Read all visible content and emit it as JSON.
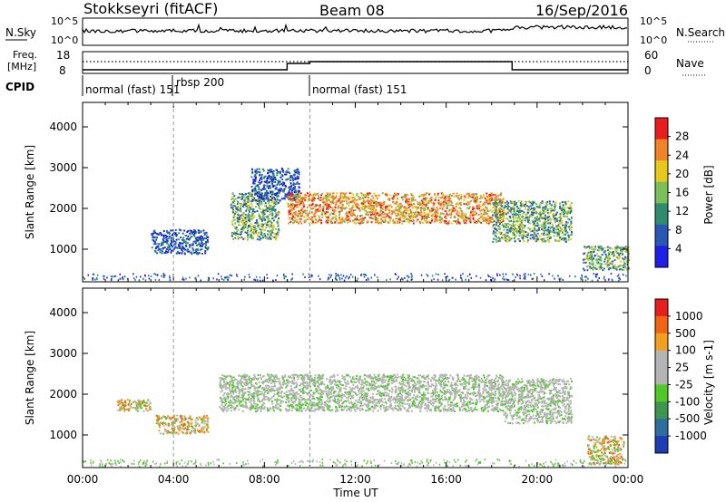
{
  "header": {
    "station": "Stokkseyri (fitACF)",
    "beam": "Beam 08",
    "date": "16/Sep/2016"
  },
  "noise_panel": {
    "left_label": "N.Sky",
    "right_label": "N.Search",
    "left_ticks": [
      "10^5",
      "10^0"
    ],
    "right_ticks": [
      "10^5",
      "10^0"
    ],
    "right_line_style": "dotted"
  },
  "freq_panel": {
    "left_label_line1": "Freq.",
    "left_label_line2": "[MHz]",
    "right_label": "Nave",
    "left_ticks": [
      "18",
      "8"
    ],
    "right_ticks": [
      "60",
      "0"
    ],
    "right_line_style": "dotted"
  },
  "cpid_panel": {
    "label": "CPID",
    "segments": [
      {
        "text": "normal (fast) 151",
        "start_hour": 0
      },
      {
        "text": "rbsp 200",
        "start_hour": 4.1
      },
      {
        "text": "normal (fast) 151",
        "start_hour": 10.0
      }
    ]
  },
  "chart_data": [
    {
      "type": "heatmap",
      "name": "power",
      "xlabel": "",
      "ylabel": "Slant Range [km]",
      "xlim": [
        0,
        24
      ],
      "ylim": [
        200,
        4600
      ],
      "y_ticks": [
        "1000",
        "2000",
        "3000",
        "4000"
      ],
      "colorbar_label": "Power [dB]",
      "colorbar_ticks": [
        "4",
        "8",
        "12",
        "16",
        "20",
        "24",
        "28"
      ],
      "colorbar_colors": [
        "#1e1ee6",
        "#2858b4",
        "#2e8c6e",
        "#7ac05a",
        "#e6c81e",
        "#f08228",
        "#e61e1e"
      ],
      "scatter_regions": [
        {
          "hours": [
            6.5,
            8.6
          ],
          "range_km": [
            1250,
            2400
          ],
          "level": "mid"
        },
        {
          "hours": [
            7.4,
            9.5
          ],
          "range_km": [
            2200,
            3000
          ],
          "level": "low"
        },
        {
          "hours": [
            9.0,
            18.5
          ],
          "range_km": [
            1650,
            2400
          ],
          "level": "high"
        },
        {
          "hours": [
            3.0,
            5.5
          ],
          "range_km": [
            900,
            1500
          ],
          "level": "low"
        },
        {
          "hours": [
            18.0,
            21.5
          ],
          "range_km": [
            1200,
            2200
          ],
          "level": "mid"
        },
        {
          "hours": [
            22.0,
            24.0
          ],
          "range_km": [
            500,
            1100
          ],
          "level": "mid"
        }
      ]
    },
    {
      "type": "heatmap",
      "name": "velocity",
      "xlabel": "Time UT",
      "ylabel": "Slant Range [km]",
      "xlim": [
        0,
        24
      ],
      "ylim": [
        200,
        4600
      ],
      "x_ticks": [
        "00:00",
        "04:00",
        "08:00",
        "12:00",
        "16:00",
        "20:00",
        "00:00"
      ],
      "y_ticks": [
        "1000",
        "2000",
        "3000",
        "4000"
      ],
      "colorbar_label": "Velocity [m s-1]",
      "colorbar_ticks": [
        "1000",
        "500",
        "100",
        "25",
        "-25",
        "-100",
        "-500",
        "-1000"
      ],
      "colorbar_colors": [
        "#1e3cb4",
        "#2e6e9e",
        "#3c9650",
        "#50c828",
        "#b4b4b4",
        "#b4b4b4",
        "#f0a01e",
        "#f06414",
        "#e61e1e"
      ],
      "scatter_regions": [
        {
          "hours": [
            6.0,
            18.5
          ],
          "range_km": [
            1600,
            2500
          ],
          "level": "ground"
        },
        {
          "hours": [
            1.5,
            3.0
          ],
          "range_km": [
            1600,
            1900
          ],
          "level": "positive"
        },
        {
          "hours": [
            3.2,
            5.5
          ],
          "range_km": [
            1050,
            1500
          ],
          "level": "positive"
        },
        {
          "hours": [
            18.5,
            21.5
          ],
          "range_km": [
            1300,
            2400
          ],
          "level": "ground"
        },
        {
          "hours": [
            22.2,
            23.8
          ],
          "range_km": [
            300,
            1000
          ],
          "level": "positive"
        }
      ]
    }
  ]
}
